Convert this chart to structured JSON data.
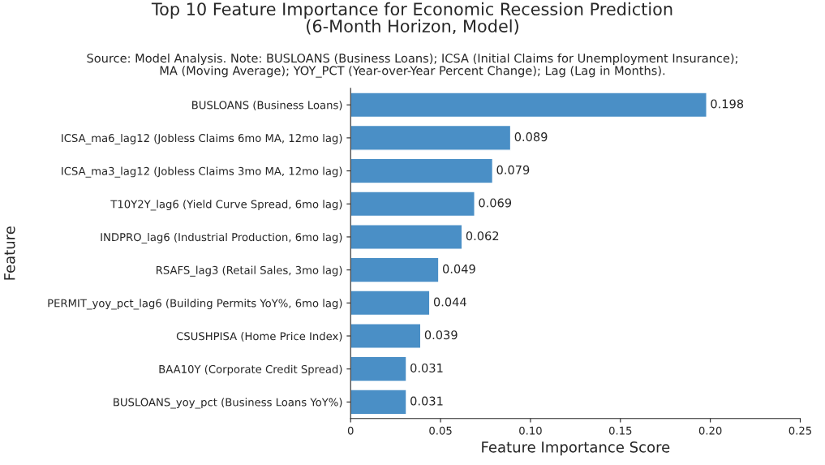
{
  "chart_data": {
    "type": "bar",
    "orientation": "horizontal",
    "title": "Top 10 Feature Importance for Economic Recession Prediction\n(6-Month Horizon, Model)",
    "subtitle": "Source: Model Analysis. Note: BUSLOANS (Business Loans); ICSA (Initial Claims for Unemployment Insurance);\nMA (Moving Average); YOY_PCT (Year-over-Year Percent Change); Lag (Lag in Months).",
    "xlabel": "Feature Importance Score",
    "ylabel": "Feature",
    "categories": [
      "BUSLOANS (Business Loans)",
      "ICSA_ma6_lag12 (Jobless Claims 6mo MA, 12mo lag)",
      "ICSA_ma3_lag12 (Jobless Claims 3mo MA, 12mo lag)",
      "T10Y2Y_lag6 (Yield Curve Spread, 6mo lag)",
      "INDPRO_lag6 (Industrial Production, 6mo lag)",
      "RSAFS_lag3 (Retail Sales, 3mo lag)",
      "PERMIT_yoy_pct_lag6 (Building Permits YoY%, 6mo lag)",
      "CSUSHPISA (Home Price Index)",
      "BAA10Y (Corporate Credit Spread)",
      "BUSLOANS_yoy_pct (Business Loans YoY%)"
    ],
    "values": [
      0.198,
      0.089,
      0.079,
      0.069,
      0.062,
      0.049,
      0.044,
      0.039,
      0.031,
      0.031
    ],
    "color": "#4a8fc6",
    "data_labels": true,
    "xlim": [
      0,
      0.25
    ],
    "xticks": [
      0,
      0.05,
      {
        "value": 0.1,
        "label": "0.10"
      },
      0.15,
      {
        "value": 0.2,
        "label": "0.20"
      },
      0.25
    ],
    "grid": false,
    "legend": false
  }
}
